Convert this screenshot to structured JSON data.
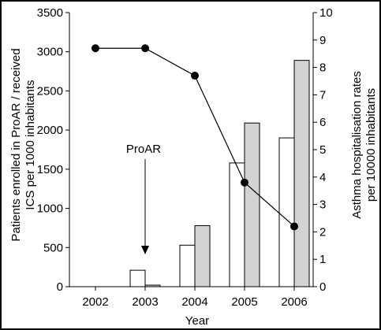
{
  "chart_data": {
    "type": "bar",
    "x": [
      "2002",
      "2003",
      "2004",
      "2005",
      "2006"
    ],
    "xlabel": "Year",
    "ylabel_left_line1": "Patients enrolled in ProAR / received",
    "ylabel_left_line2": "ICS per 1000 inhabitants",
    "ylabel_right_line1": "Asthma hospitalisation rates",
    "ylabel_right_line2": "per 10000 inhabitants",
    "ylim_left": [
      0,
      3500
    ],
    "yticks_left": [
      0,
      500,
      1000,
      1500,
      2000,
      2500,
      3000,
      3500
    ],
    "ylim_right": [
      0,
      10
    ],
    "yticks_right": [
      0,
      1,
      2,
      3,
      4,
      5,
      6,
      7,
      8,
      9,
      10
    ],
    "series": [
      {
        "kind": "bar",
        "axis": "left",
        "fill": "#ffffff",
        "values": [
          0,
          210,
          530,
          1580,
          1900
        ]
      },
      {
        "kind": "bar",
        "axis": "left",
        "fill": "#d3d3d3",
        "values": [
          0,
          20,
          780,
          2090,
          2890
        ]
      },
      {
        "kind": "line",
        "axis": "right",
        "marker": "circle",
        "values": [
          8.7,
          8.7,
          7.7,
          3.8,
          2.2
        ]
      }
    ],
    "annotation": {
      "text": "ProAR",
      "x": "2003"
    }
  }
}
